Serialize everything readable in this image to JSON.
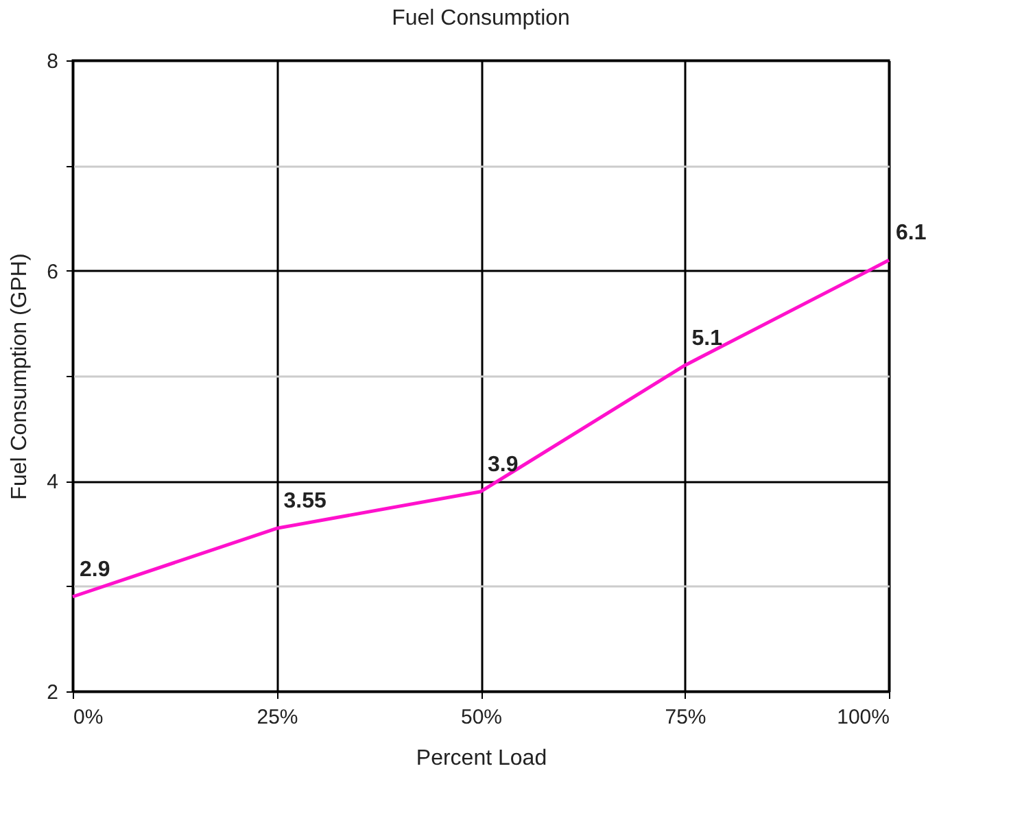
{
  "chart_data": {
    "type": "line",
    "title": "Fuel Consumption",
    "xlabel": "Percent Load",
    "ylabel": "Fuel Consumption (GPH)",
    "x": [
      0,
      25,
      50,
      75,
      100
    ],
    "series": [
      {
        "color": "#ff11cc",
        "values": [
          2.9,
          3.55,
          3.9,
          5.1,
          6.1
        ]
      }
    ],
    "xlim": [
      0,
      100
    ],
    "xticks": [
      {
        "value": 0,
        "label": "0%"
      },
      {
        "value": 25,
        "label": "25%"
      },
      {
        "value": 50,
        "label": "50%"
      },
      {
        "value": 75,
        "label": "75%"
      },
      {
        "value": 100,
        "label": "100%"
      }
    ],
    "ylim": [
      2,
      8
    ],
    "yticks": [
      2,
      {
        "value": 3,
        "label": null
      },
      4,
      {
        "value": 5,
        "label": null
      },
      6,
      {
        "value": 7,
        "label": null
      },
      8
    ],
    "grid": true,
    "data_labels": true,
    "marker": "none",
    "line_style": "solid"
  }
}
